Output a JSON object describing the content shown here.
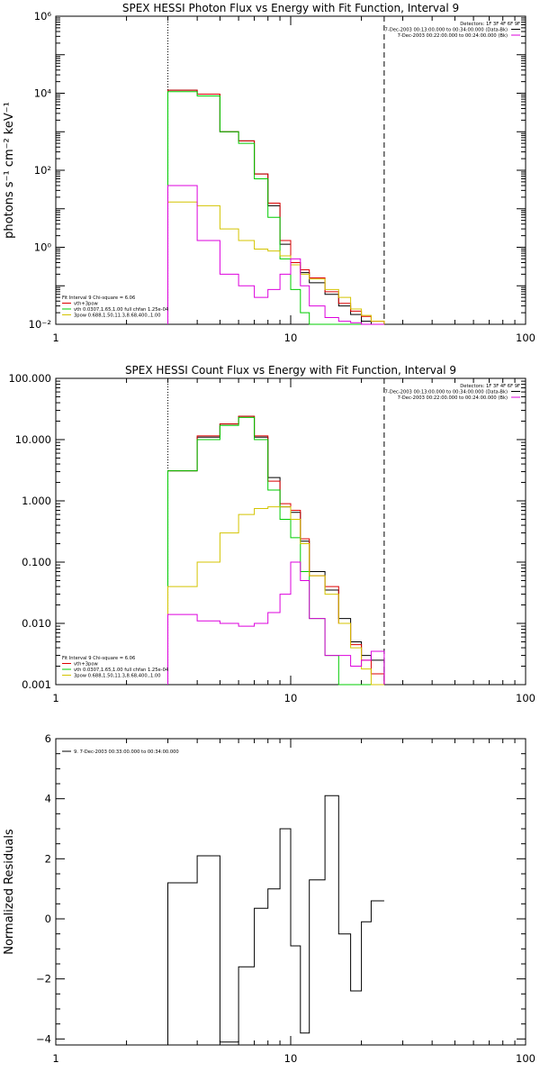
{
  "chart_data": [
    {
      "type": "line",
      "title": "SPEX HESSI Photon Flux vs Energy with Fit Function, Interval 9",
      "xlabel": "",
      "ylabel": "photons s⁻¹ cm⁻² keV⁻¹",
      "xlog": true,
      "ylog": true,
      "xlim": [
        1,
        100
      ],
      "ylim": [
        0.01,
        1000000
      ],
      "x_ticks": [
        "1",
        "10",
        "100"
      ],
      "y_ticks": [
        {
          "value": 0.01,
          "label": "10⁻²"
        },
        {
          "value": 1,
          "label": "10⁰"
        },
        {
          "value": 100,
          "label": "10²"
        },
        {
          "value": 10000,
          "label": "10⁴"
        },
        {
          "value": 1000000,
          "label": "10⁶"
        }
      ],
      "vlines": [
        {
          "x": 3.0,
          "style": "dotted"
        },
        {
          "x": 25.0,
          "style": "dashed"
        }
      ],
      "header_legend": [
        {
          "text": "Detectors: 1F 3F 4F 6F 9F",
          "color": "#000000"
        },
        {
          "text": "7-Dec-2003 00:13:00.000 to 00:34:00.000 (Data-Bk)",
          "color": "#000000"
        },
        {
          "text": "7-Dec-2003 00:22:00.000 to 00:24:00.000 (Bk)",
          "color": "#dd00dd"
        }
      ],
      "fit_legend": [
        {
          "text": "Fit Interval 9   Chi-square = 6.06",
          "color": "#000000"
        },
        {
          "text": "vth+3pow",
          "color": "#dd0000"
        },
        {
          "text": "vth 0.0307,1.65,1.00  full chfan 1.25e-04",
          "color": "#00cc00"
        },
        {
          "text": "3pow 0.688,1.50,11.3,8.68,400.,1.00",
          "color": "#d4c400"
        }
      ],
      "bin_edges": [
        3,
        4,
        5,
        6,
        7,
        8,
        9,
        10,
        11,
        12,
        14,
        16,
        18,
        20,
        22,
        25
      ],
      "series": [
        {
          "name": "Data-Bk",
          "color": "#000000",
          "values": [
            12000,
            9500,
            1000,
            580,
            80,
            12,
            1.2,
            0.35,
            0.22,
            0.12,
            0.06,
            0.03,
            0.018,
            0.012,
            0.01
          ]
        },
        {
          "name": "vth+3pow",
          "color": "#dd0000",
          "values": [
            12000,
            9500,
            1000,
            580,
            80,
            14,
            1.5,
            0.4,
            0.26,
            0.16,
            0.07,
            0.035,
            0.022,
            0.016,
            0.012
          ]
        },
        {
          "name": "vth",
          "color": "#00cc00",
          "values": [
            11000,
            8500,
            1000,
            500,
            60,
            6,
            0.5,
            0.08,
            0.02,
            0.01,
            0.01,
            0.01,
            0.01,
            0.01,
            0.01
          ]
        },
        {
          "name": "3pow",
          "color": "#d4c400",
          "values": [
            15,
            12,
            3,
            1.5,
            0.9,
            0.8,
            0.6,
            0.35,
            0.2,
            0.15,
            0.08,
            0.05,
            0.025,
            0.017,
            0.012
          ]
        },
        {
          "name": "Bk",
          "color": "#dd00dd",
          "values": [
            40,
            1.5,
            0.2,
            0.1,
            0.05,
            0.08,
            0.2,
            0.5,
            0.1,
            0.03,
            0.015,
            0.012,
            0.011,
            0.01,
            0.01
          ]
        }
      ]
    },
    {
      "type": "line",
      "title": "SPEX HESSI Count Flux vs Energy with Fit Function, Interval 9",
      "xlabel": "",
      "ylabel": "",
      "xlog": true,
      "ylog": true,
      "xlim": [
        1,
        100
      ],
      "ylim": [
        0.001,
        100
      ],
      "x_ticks": [
        "1",
        "10",
        "100"
      ],
      "y_ticks": [
        {
          "value": 0.001,
          "label": "0.001"
        },
        {
          "value": 0.01,
          "label": "0.010"
        },
        {
          "value": 0.1,
          "label": "0.100"
        },
        {
          "value": 1,
          "label": "1.000"
        },
        {
          "value": 10,
          "label": "10.000"
        },
        {
          "value": 100,
          "label": "100.000"
        }
      ],
      "vlines": [
        {
          "x": 3.0,
          "style": "dotted"
        },
        {
          "x": 25.0,
          "style": "dashed"
        }
      ],
      "header_legend": [
        {
          "text": "Detectors: 1F 3F 4F 6F 9F",
          "color": "#000000"
        },
        {
          "text": "7-Dec-2003 00:13:00.000 to 00:34:00.000 (Data-Bk)",
          "color": "#000000"
        },
        {
          "text": "7-Dec-2003 00:22:00.000 to 00:24:00.000 (Bk)",
          "color": "#dd00dd"
        }
      ],
      "fit_legend": [
        {
          "text": "Fit Interval 9   Chi-square = 6.06",
          "color": "#000000"
        },
        {
          "text": "vth+3pow",
          "color": "#dd0000"
        },
        {
          "text": "vth 0.0307,1.65,1.00  full chfan 1.25e-04",
          "color": "#00cc00"
        },
        {
          "text": "3pow 0.688,1.50,11.3,8.68,400.,1.00",
          "color": "#d4c400"
        }
      ],
      "bin_edges": [
        3,
        4,
        5,
        6,
        7,
        8,
        9,
        10,
        11,
        12,
        14,
        16,
        18,
        20,
        22,
        25
      ],
      "series": [
        {
          "name": "Data-Bk",
          "color": "#000000",
          "values": [
            3.1,
            11,
            18,
            24,
            11,
            2.4,
            0.8,
            0.65,
            0.22,
            0.07,
            0.035,
            0.012,
            0.005,
            0.003,
            0.0025
          ]
        },
        {
          "name": "vth+3pow",
          "color": "#dd0000",
          "values": [
            3.1,
            11.5,
            18,
            24,
            11.5,
            2.1,
            0.9,
            0.7,
            0.24,
            0.06,
            0.04,
            0.01,
            0.0045,
            0.0025,
            0.0015
          ]
        },
        {
          "name": "vth",
          "color": "#00cc00",
          "values": [
            3.1,
            10,
            17,
            23,
            10,
            1.5,
            0.5,
            0.25,
            0.07,
            0.012,
            0.003,
            0.001,
            0.001,
            0.001,
            0.001
          ]
        },
        {
          "name": "3pow",
          "color": "#d4c400",
          "values": [
            0.04,
            0.1,
            0.3,
            0.6,
            0.75,
            0.8,
            0.8,
            0.5,
            0.2,
            0.06,
            0.03,
            0.01,
            0.004,
            0.0018,
            0.001
          ]
        },
        {
          "name": "Bk",
          "color": "#dd00dd",
          "values": [
            0.014,
            0.011,
            0.01,
            0.009,
            0.01,
            0.015,
            0.03,
            0.1,
            0.05,
            0.012,
            0.003,
            0.003,
            0.002,
            0.0025,
            0.0035
          ]
        }
      ]
    },
    {
      "type": "line",
      "title": "",
      "xlabel": "",
      "ylabel": "Normalized Residuals",
      "xlog": true,
      "ylog": false,
      "xlim": [
        1,
        100
      ],
      "ylim": [
        -4.2,
        6
      ],
      "x_ticks": [
        "1",
        "10",
        "100"
      ],
      "y_ticks": [
        {
          "value": -4,
          "label": "−4"
        },
        {
          "value": -2,
          "label": "−2"
        },
        {
          "value": 0,
          "label": "0"
        },
        {
          "value": 2,
          "label": "2"
        },
        {
          "value": 4,
          "label": "4"
        },
        {
          "value": 6,
          "label": "6"
        }
      ],
      "legend": [
        {
          "text": "9.  7-Dec-2003 00:33:00.000 to 00:34:00.000",
          "color": "#000000"
        }
      ],
      "bin_edges": [
        3,
        4,
        5,
        6,
        7,
        8,
        9,
        10,
        11,
        12,
        14,
        16,
        18,
        20,
        22,
        25
      ],
      "series": [
        {
          "name": "residuals",
          "color": "#000000",
          "values": [
            1.2,
            2.1,
            -4.1,
            -1.6,
            0.35,
            1.0,
            3.0,
            -0.9,
            -3.8,
            1.3,
            4.1,
            -0.5,
            -2.4,
            -0.1,
            0.6
          ]
        }
      ]
    }
  ]
}
